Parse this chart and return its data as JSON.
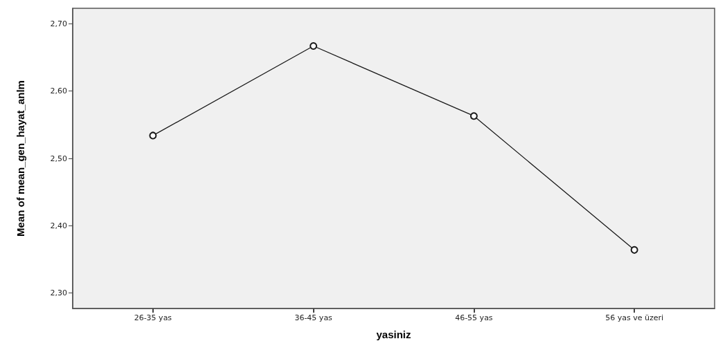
{
  "chart_data": {
    "type": "line",
    "xlabel": "yasiniz",
    "ylabel": "Mean of mean_gen_hayat_anlm",
    "categories": [
      "26-35 yas",
      "36-45 yas",
      "46-55 yas",
      "56 yas ve üzeri"
    ],
    "series": [
      {
        "color": "#1a1a1a",
        "values": [
          2.534,
          2.667,
          2.563,
          2.364
        ]
      }
    ],
    "ylim": [
      2.277,
      2.723
    ],
    "yticks": [
      {
        "value": 2.3,
        "label": "2,30"
      },
      {
        "value": 2.4,
        "label": "2,40"
      },
      {
        "value": 2.5,
        "label": "2,50"
      },
      {
        "value": 2.6,
        "label": "2,60"
      },
      {
        "value": 2.7,
        "label": "2,70"
      }
    ],
    "grid": false,
    "marker": "circle",
    "line_style": "solid"
  }
}
